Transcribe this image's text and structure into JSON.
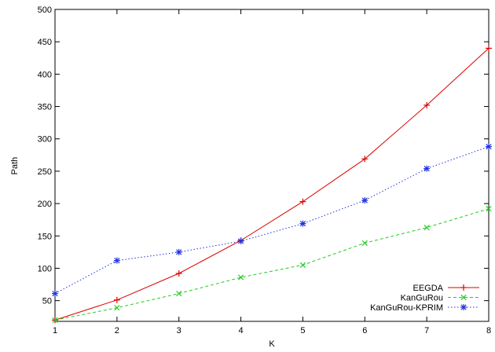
{
  "chart_data": {
    "type": "line",
    "title": "",
    "xlabel": "K",
    "ylabel": "Path",
    "xlim": [
      1,
      8
    ],
    "ylim": [
      18,
      500
    ],
    "xticks": [
      1,
      2,
      3,
      4,
      5,
      6,
      7,
      8
    ],
    "yticks": [
      50,
      100,
      150,
      200,
      250,
      300,
      350,
      400,
      450,
      500
    ],
    "grid": false,
    "legend_position": "bottom-right",
    "x": [
      1,
      2,
      3,
      4,
      5,
      6,
      7,
      8
    ],
    "series": [
      {
        "name": "EEGDA",
        "color": "#dd0000",
        "dash": "solid",
        "marker": "plus",
        "values": [
          20,
          51,
          92,
          143,
          203,
          269,
          352,
          440
        ]
      },
      {
        "name": "KanGuRou",
        "color": "#22cc22",
        "dash": "dashed",
        "marker": "cross",
        "values": [
          20,
          39,
          61,
          86,
          105,
          139,
          163,
          192
        ]
      },
      {
        "name": "KanGuRou-KPRIM",
        "color": "#2233dd",
        "dash": "dotted",
        "marker": "star",
        "values": [
          61,
          112,
          125,
          142,
          169,
          205,
          254,
          288
        ]
      }
    ]
  }
}
